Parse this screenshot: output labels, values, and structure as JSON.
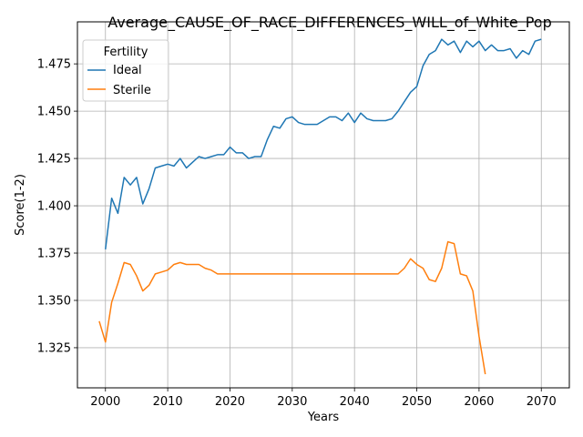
{
  "chart_data": {
    "type": "line",
    "title": "Average_CAUSE_OF_RACE_DIFFERENCES_WILL_of_White_Pop",
    "xlabel": "Years",
    "ylabel": "Score(1-2)",
    "xlim": [
      1995.5,
      2074.5
    ],
    "ylim": [
      1.3038,
      1.4972
    ],
    "xticks": [
      2000,
      2010,
      2020,
      2030,
      2040,
      2050,
      2060,
      2070
    ],
    "yticks": [
      1.325,
      1.35,
      1.375,
      1.4,
      1.425,
      1.45,
      1.475
    ],
    "grid": true,
    "legend": {
      "title": "Fertility",
      "placement": "top-left"
    },
    "series": [
      {
        "name": "Ideal",
        "color": "#1f77b4",
        "x": [
          2000,
          2001,
          2002,
          2003,
          2004,
          2005,
          2006,
          2007,
          2008,
          2009,
          2010,
          2011,
          2012,
          2013,
          2014,
          2015,
          2016,
          2017,
          2018,
          2019,
          2020,
          2021,
          2022,
          2023,
          2024,
          2025,
          2026,
          2027,
          2028,
          2029,
          2030,
          2031,
          2032,
          2033,
          2034,
          2035,
          2036,
          2037,
          2038,
          2039,
          2040,
          2041,
          2042,
          2043,
          2044,
          2045,
          2046,
          2047,
          2048,
          2049,
          2050,
          2051,
          2052,
          2053,
          2054,
          2055,
          2056,
          2057,
          2058,
          2059,
          2060,
          2061,
          2062,
          2063,
          2064,
          2065,
          2066,
          2067,
          2068,
          2069,
          2070
        ],
        "y": [
          1.377,
          1.404,
          1.396,
          1.415,
          1.411,
          1.415,
          1.401,
          1.409,
          1.42,
          1.421,
          1.422,
          1.421,
          1.425,
          1.42,
          1.423,
          1.426,
          1.425,
          1.426,
          1.427,
          1.427,
          1.431,
          1.428,
          1.428,
          1.425,
          1.426,
          1.426,
          1.435,
          1.442,
          1.441,
          1.446,
          1.447,
          1.444,
          1.443,
          1.443,
          1.443,
          1.445,
          1.447,
          1.447,
          1.445,
          1.449,
          1.444,
          1.449,
          1.446,
          1.445,
          1.445,
          1.445,
          1.446,
          1.45,
          1.455,
          1.46,
          1.463,
          1.474,
          1.48,
          1.482,
          1.488,
          1.485,
          1.487,
          1.481,
          1.487,
          1.484,
          1.487,
          1.482,
          1.485,
          1.482,
          1.482,
          1.483,
          1.478,
          1.482,
          1.48,
          1.487,
          1.488
        ]
      },
      {
        "name": "Sterile",
        "color": "#ff7f0e",
        "x": [
          1999,
          2000,
          2001,
          2002,
          2003,
          2004,
          2005,
          2006,
          2007,
          2008,
          2009,
          2010,
          2011,
          2012,
          2013,
          2014,
          2015,
          2016,
          2017,
          2018,
          2019,
          2020,
          2021,
          2022,
          2023,
          2024,
          2025,
          2026,
          2027,
          2028,
          2029,
          2030,
          2031,
          2032,
          2033,
          2034,
          2035,
          2036,
          2037,
          2038,
          2039,
          2040,
          2041,
          2042,
          2043,
          2044,
          2045,
          2046,
          2047,
          2048,
          2049,
          2050,
          2051,
          2052,
          2053,
          2054,
          2055,
          2056,
          2057,
          2058,
          2059,
          2060,
          2061
        ],
        "y": [
          1.339,
          1.328,
          1.349,
          1.359,
          1.37,
          1.369,
          1.363,
          1.355,
          1.358,
          1.364,
          1.365,
          1.366,
          1.369,
          1.37,
          1.369,
          1.369,
          1.369,
          1.367,
          1.366,
          1.364,
          1.364,
          1.364,
          1.364,
          1.364,
          1.364,
          1.364,
          1.364,
          1.364,
          1.364,
          1.364,
          1.364,
          1.364,
          1.364,
          1.364,
          1.364,
          1.364,
          1.364,
          1.364,
          1.364,
          1.364,
          1.364,
          1.364,
          1.364,
          1.364,
          1.364,
          1.364,
          1.364,
          1.364,
          1.364,
          1.367,
          1.372,
          1.369,
          1.367,
          1.361,
          1.36,
          1.367,
          1.381,
          1.38,
          1.364,
          1.363,
          1.355,
          1.331,
          1.311
        ]
      }
    ]
  }
}
